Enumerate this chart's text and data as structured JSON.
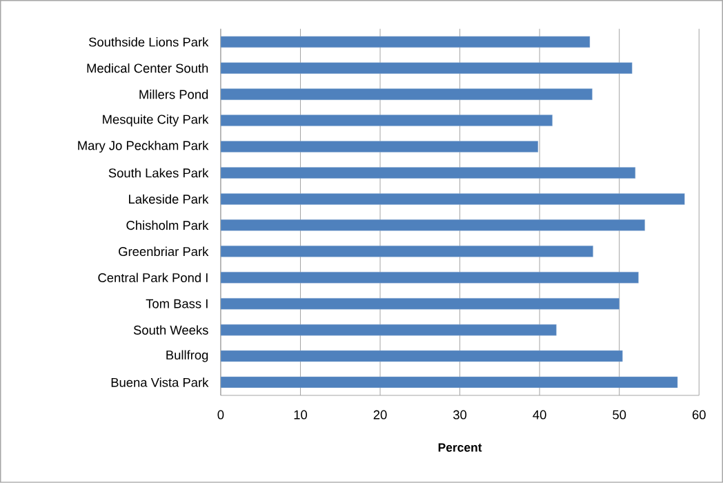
{
  "chart_data": {
    "type": "bar",
    "orientation": "horizontal",
    "xlabel": "Percent",
    "categories": [
      "Southside Lions Park",
      "Medical Center South",
      "Millers Pond",
      "Mesquite City Park",
      "Mary Jo Peckham Park",
      "South Lakes Park",
      "Lakeside Park",
      "Chisholm Park",
      "Greenbriar Park",
      "Central Park Pond I",
      "Tom Bass I",
      "South Weeks",
      "Bullfrog",
      "Buena Vista Park"
    ],
    "values": [
      46.3,
      51.6,
      46.6,
      41.6,
      39.8,
      52.0,
      58.2,
      53.2,
      46.7,
      52.4,
      50.0,
      42.1,
      50.4,
      57.3
    ],
    "color": "#4f81bd",
    "xlim": [
      0,
      60
    ],
    "xticks": [
      0,
      10,
      20,
      30,
      40,
      50,
      60
    ],
    "grid": "x"
  }
}
